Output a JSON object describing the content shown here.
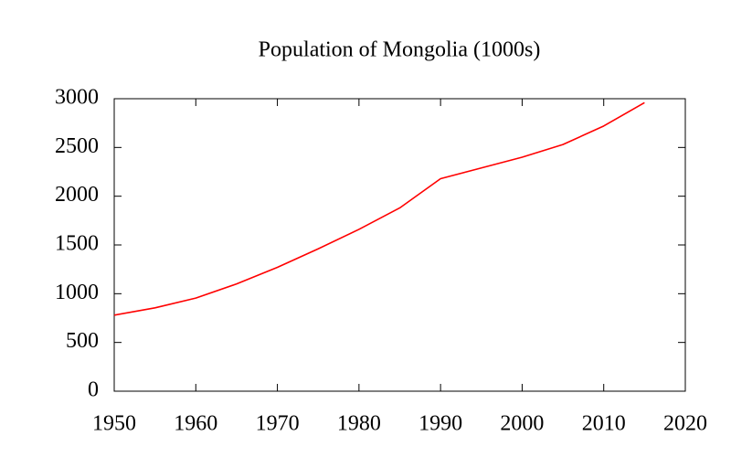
{
  "chart_data": {
    "type": "line",
    "title": "Population of Mongolia (1000s)",
    "x": [
      1950,
      1955,
      1960,
      1965,
      1970,
      1975,
      1980,
      1985,
      1990,
      1995,
      2000,
      2005,
      2010,
      2015
    ],
    "values": [
      780,
      855,
      955,
      1100,
      1270,
      1460,
      1660,
      1880,
      2180,
      2290,
      2400,
      2530,
      2720,
      2960
    ],
    "color": "#ff0000",
    "xlim": [
      1950,
      2020
    ],
    "xticks": [
      1950,
      1960,
      1970,
      1980,
      1990,
      2000,
      2010,
      2020
    ],
    "ylim": [
      0,
      3000
    ],
    "yticks": [
      0,
      500,
      1000,
      1500,
      2000,
      2500,
      3000
    ],
    "grid": false
  }
}
